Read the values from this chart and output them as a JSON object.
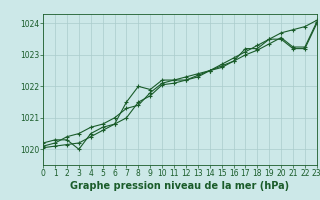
{
  "title": "Graphe pression niveau de la mer (hPa)",
  "background_color": "#cce8e8",
  "plot_bg_color": "#cce8e8",
  "label_bg_color": "#cce8e8",
  "grid_color": "#aacccc",
  "line_color": "#1a5c2a",
  "xlim": [
    0,
    23
  ],
  "ylim": [
    1019.5,
    1024.3
  ],
  "yticks": [
    1020,
    1021,
    1022,
    1023,
    1024
  ],
  "xticks": [
    0,
    1,
    2,
    3,
    4,
    5,
    6,
    7,
    8,
    9,
    10,
    11,
    12,
    13,
    14,
    15,
    16,
    17,
    18,
    19,
    20,
    21,
    22,
    23
  ],
  "series1_x": [
    0,
    1,
    2,
    3,
    4,
    5,
    6,
    7,
    8,
    9,
    10,
    11,
    12,
    13,
    14,
    15,
    16,
    17,
    18,
    19,
    20,
    21,
    22,
    23
  ],
  "series1_y": [
    1020.2,
    1020.3,
    1020.3,
    1020.0,
    1020.5,
    1020.7,
    1020.8,
    1021.5,
    1022.0,
    1021.9,
    1022.2,
    1022.2,
    1022.2,
    1022.3,
    1022.5,
    1022.6,
    1022.8,
    1023.2,
    1023.2,
    1023.5,
    1023.5,
    1023.2,
    1023.2,
    1024.0
  ],
  "series2_x": [
    0,
    1,
    2,
    3,
    4,
    5,
    6,
    7,
    8,
    9,
    10,
    11,
    12,
    13,
    14,
    15,
    16,
    17,
    18,
    19,
    20,
    21,
    22,
    23
  ],
  "series2_y": [
    1020.1,
    1020.2,
    1020.4,
    1020.5,
    1020.7,
    1020.8,
    1021.0,
    1021.3,
    1021.4,
    1021.8,
    1022.1,
    1022.2,
    1022.3,
    1022.4,
    1022.5,
    1022.7,
    1022.9,
    1023.1,
    1023.3,
    1023.5,
    1023.7,
    1023.8,
    1023.9,
    1024.1
  ],
  "series3_x": [
    0,
    1,
    2,
    3,
    4,
    5,
    6,
    7,
    8,
    9,
    10,
    11,
    12,
    13,
    14,
    15,
    16,
    17,
    18,
    19,
    20,
    21,
    22,
    23
  ],
  "series3_y": [
    1020.05,
    1020.1,
    1020.15,
    1020.2,
    1020.4,
    1020.6,
    1020.8,
    1021.0,
    1021.5,
    1021.7,
    1022.05,
    1022.1,
    1022.2,
    1022.35,
    1022.5,
    1022.65,
    1022.8,
    1023.0,
    1023.15,
    1023.35,
    1023.55,
    1023.25,
    1023.25,
    1024.05
  ],
  "title_fontsize": 7.0,
  "tick_fontsize": 5.5,
  "linewidth": 0.8,
  "markersize": 3.0
}
